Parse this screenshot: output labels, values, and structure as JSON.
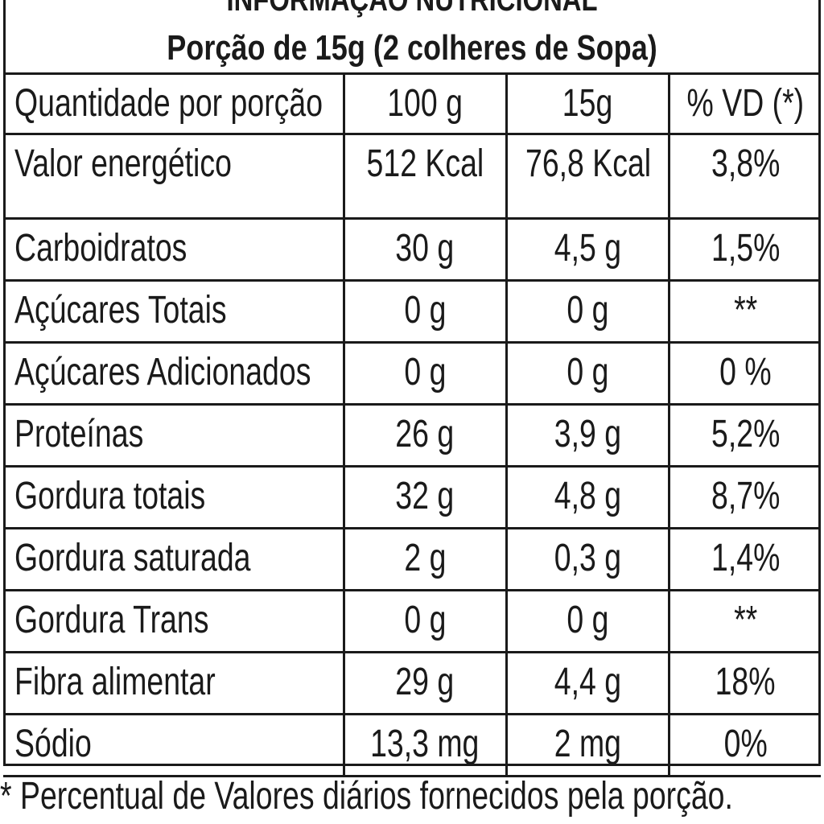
{
  "header": {
    "title": "INFORMAÇÃO NUTRICIONAL",
    "serving": "Porção de 15g (2 colheres de Sopa)"
  },
  "table": {
    "columns": [
      "Quantidade por porção",
      "100 g",
      "15g",
      "% VD (*)"
    ],
    "rows": [
      {
        "name": "Valor energético",
        "per100": "512 Kcal",
        "per15": "76,8 Kcal",
        "vd": "3,8%"
      },
      {
        "name": "Carboidratos",
        "per100": "30 g",
        "per15": "4,5 g",
        "vd": "1,5%"
      },
      {
        "name": "Açúcares Totais",
        "per100": "0 g",
        "per15": "0 g",
        "vd": "**"
      },
      {
        "name": "Açúcares Adicionados",
        "per100": "0 g",
        "per15": "0 g",
        "vd": "0 %"
      },
      {
        "name": "Proteínas",
        "per100": "26 g",
        "per15": "3,9 g",
        "vd": "5,2%"
      },
      {
        "name": "Gordura totais",
        "per100": "32 g",
        "per15": "4,8 g",
        "vd": "8,7%"
      },
      {
        "name": "Gordura saturada",
        "per100": "2 g",
        "per15": "0,3 g",
        "vd": "1,4%"
      },
      {
        "name": "Gordura Trans",
        "per100": "0 g",
        "per15": "0 g",
        "vd": "**"
      },
      {
        "name": "Fibra alimentar",
        "per100": "29 g",
        "per15": "4,4 g",
        "vd": "18%"
      },
      {
        "name": "Sódio",
        "per100": "13,3 mg",
        "per15": "2 mg",
        "vd": "0%"
      }
    ]
  },
  "footnote": "* Percentual de Valores diários fornecidos pela porção."
}
